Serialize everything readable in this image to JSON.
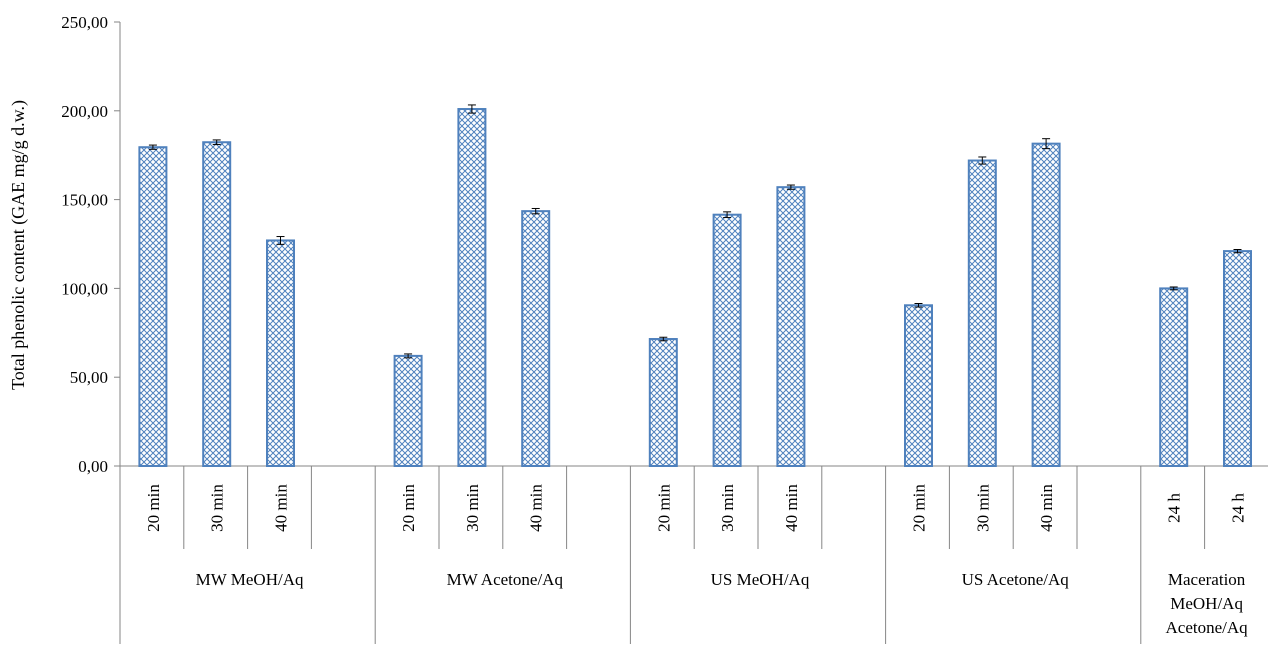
{
  "chart_data": {
    "type": "bar",
    "title": "",
    "xlabel": "",
    "ylabel": "Total phenolic content (GAE mg/g d.w.)",
    "ylim": [
      0,
      250
    ],
    "yticks": [
      "0,00",
      "50,00",
      "100,00",
      "150,00",
      "200,00",
      "250,00"
    ],
    "grid": false,
    "legend": "none",
    "bar_color": "#4f81bd",
    "groups": [
      {
        "label": [
          "MW MeOH/Aq"
        ],
        "bars": [
          {
            "category": "20 min",
            "value": 179.5,
            "error": 1.2
          },
          {
            "category": "30 min",
            "value": 182.3,
            "error": 1.3
          },
          {
            "category": "40 min",
            "value": 127.0,
            "error": 2.2
          }
        ],
        "empty_slot": true
      },
      {
        "label": [
          "MW Acetone/Aq"
        ],
        "bars": [
          {
            "category": "20 min",
            "value": 62.0,
            "error": 1.1
          },
          {
            "category": "30 min",
            "value": 201.0,
            "error": 2.3
          },
          {
            "category": "40 min",
            "value": 143.5,
            "error": 1.5
          }
        ],
        "empty_slot": true
      },
      {
        "label": [
          "US MeOH/Aq"
        ],
        "bars": [
          {
            "category": "20 min",
            "value": 71.5,
            "error": 1.0
          },
          {
            "category": "30 min",
            "value": 141.5,
            "error": 1.6
          },
          {
            "category": "40 min",
            "value": 157.0,
            "error": 1.2
          }
        ],
        "empty_slot": true
      },
      {
        "label": [
          "US Acetone/Aq"
        ],
        "bars": [
          {
            "category": "20 min",
            "value": 90.5,
            "error": 1.0
          },
          {
            "category": "30 min",
            "value": 172.0,
            "error": 2.0
          },
          {
            "category": "40 min",
            "value": 181.5,
            "error": 2.8
          }
        ],
        "empty_slot": true
      },
      {
        "label": [
          "Maceration",
          "MeOH/Aq",
          "Acetone/Aq"
        ],
        "bars": [
          {
            "category": "24 h",
            "value": 100.0,
            "error": 0.8
          },
          {
            "category": "24 h",
            "value": 121.0,
            "error": 0.9
          }
        ],
        "empty_slot": false
      }
    ]
  }
}
